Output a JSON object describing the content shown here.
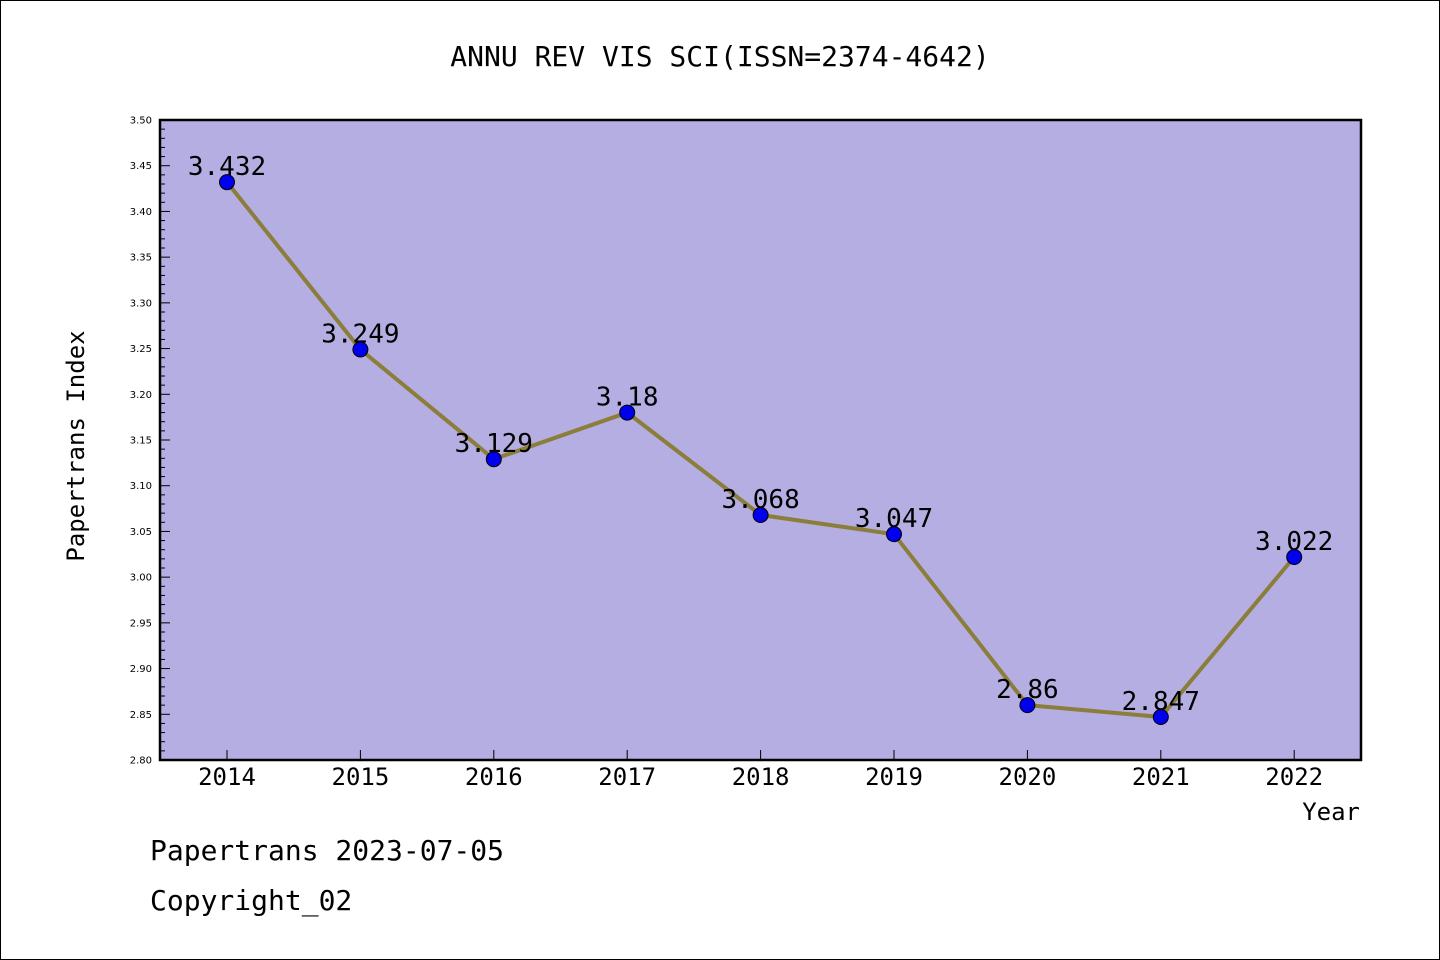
{
  "chart_data": {
    "type": "line",
    "title": "ANNU REV VIS SCI(ISSN=2374-4642)",
    "xlabel": "Year",
    "ylabel": "Papertrans Index",
    "categories": [
      "2014",
      "2015",
      "2016",
      "2017",
      "2018",
      "2019",
      "2020",
      "2021",
      "2022"
    ],
    "series": [
      {
        "values": [
          3.432,
          3.249,
          3.129,
          3.18,
          3.068,
          3.047,
          2.86,
          2.847,
          3.022
        ],
        "labels": [
          "3.432",
          "3.249",
          "3.129",
          "3.18",
          "3.068",
          "3.047",
          "2.86",
          "2.847",
          "3.022"
        ]
      }
    ],
    "ylim": [
      2.8,
      3.5
    ],
    "yticks": [
      "2.80",
      "2.85",
      "2.90",
      "2.95",
      "3.00",
      "3.05",
      "3.10",
      "3.15",
      "3.20",
      "3.25",
      "3.30",
      "3.35",
      "3.40",
      "3.45",
      "3.50"
    ],
    "grid": false,
    "colors": {
      "plot_background": "#b4aee2",
      "line": "#8b7d3a",
      "marker": "#0000ee"
    }
  },
  "footer": {
    "line1": "Papertrans 2023-07-05",
    "line2": "Copyright_02"
  }
}
